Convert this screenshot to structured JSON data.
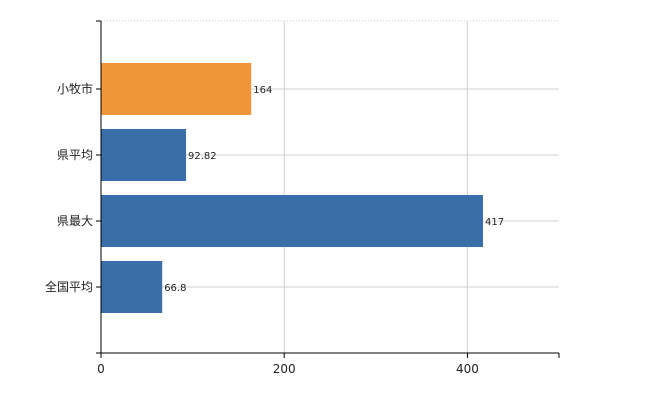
{
  "chart_data": {
    "type": "bar",
    "orientation": "horizontal",
    "categories": [
      "小牧市",
      "県平均",
      "県最大",
      "全国平均"
    ],
    "values": [
      164,
      92.82,
      417,
      66.8
    ],
    "value_labels": [
      "164",
      "92.82",
      "417",
      "66.8"
    ],
    "bar_colors": [
      "#f0963a",
      "#3a6ea8",
      "#3a6ea8",
      "#3a6ea8"
    ],
    "xlim": [
      0,
      500
    ],
    "xticks": [
      0,
      200,
      400
    ],
    "xtick_labels": [
      "0",
      "200",
      "400"
    ],
    "grid": true,
    "title": "",
    "xlabel": "",
    "ylabel": ""
  }
}
